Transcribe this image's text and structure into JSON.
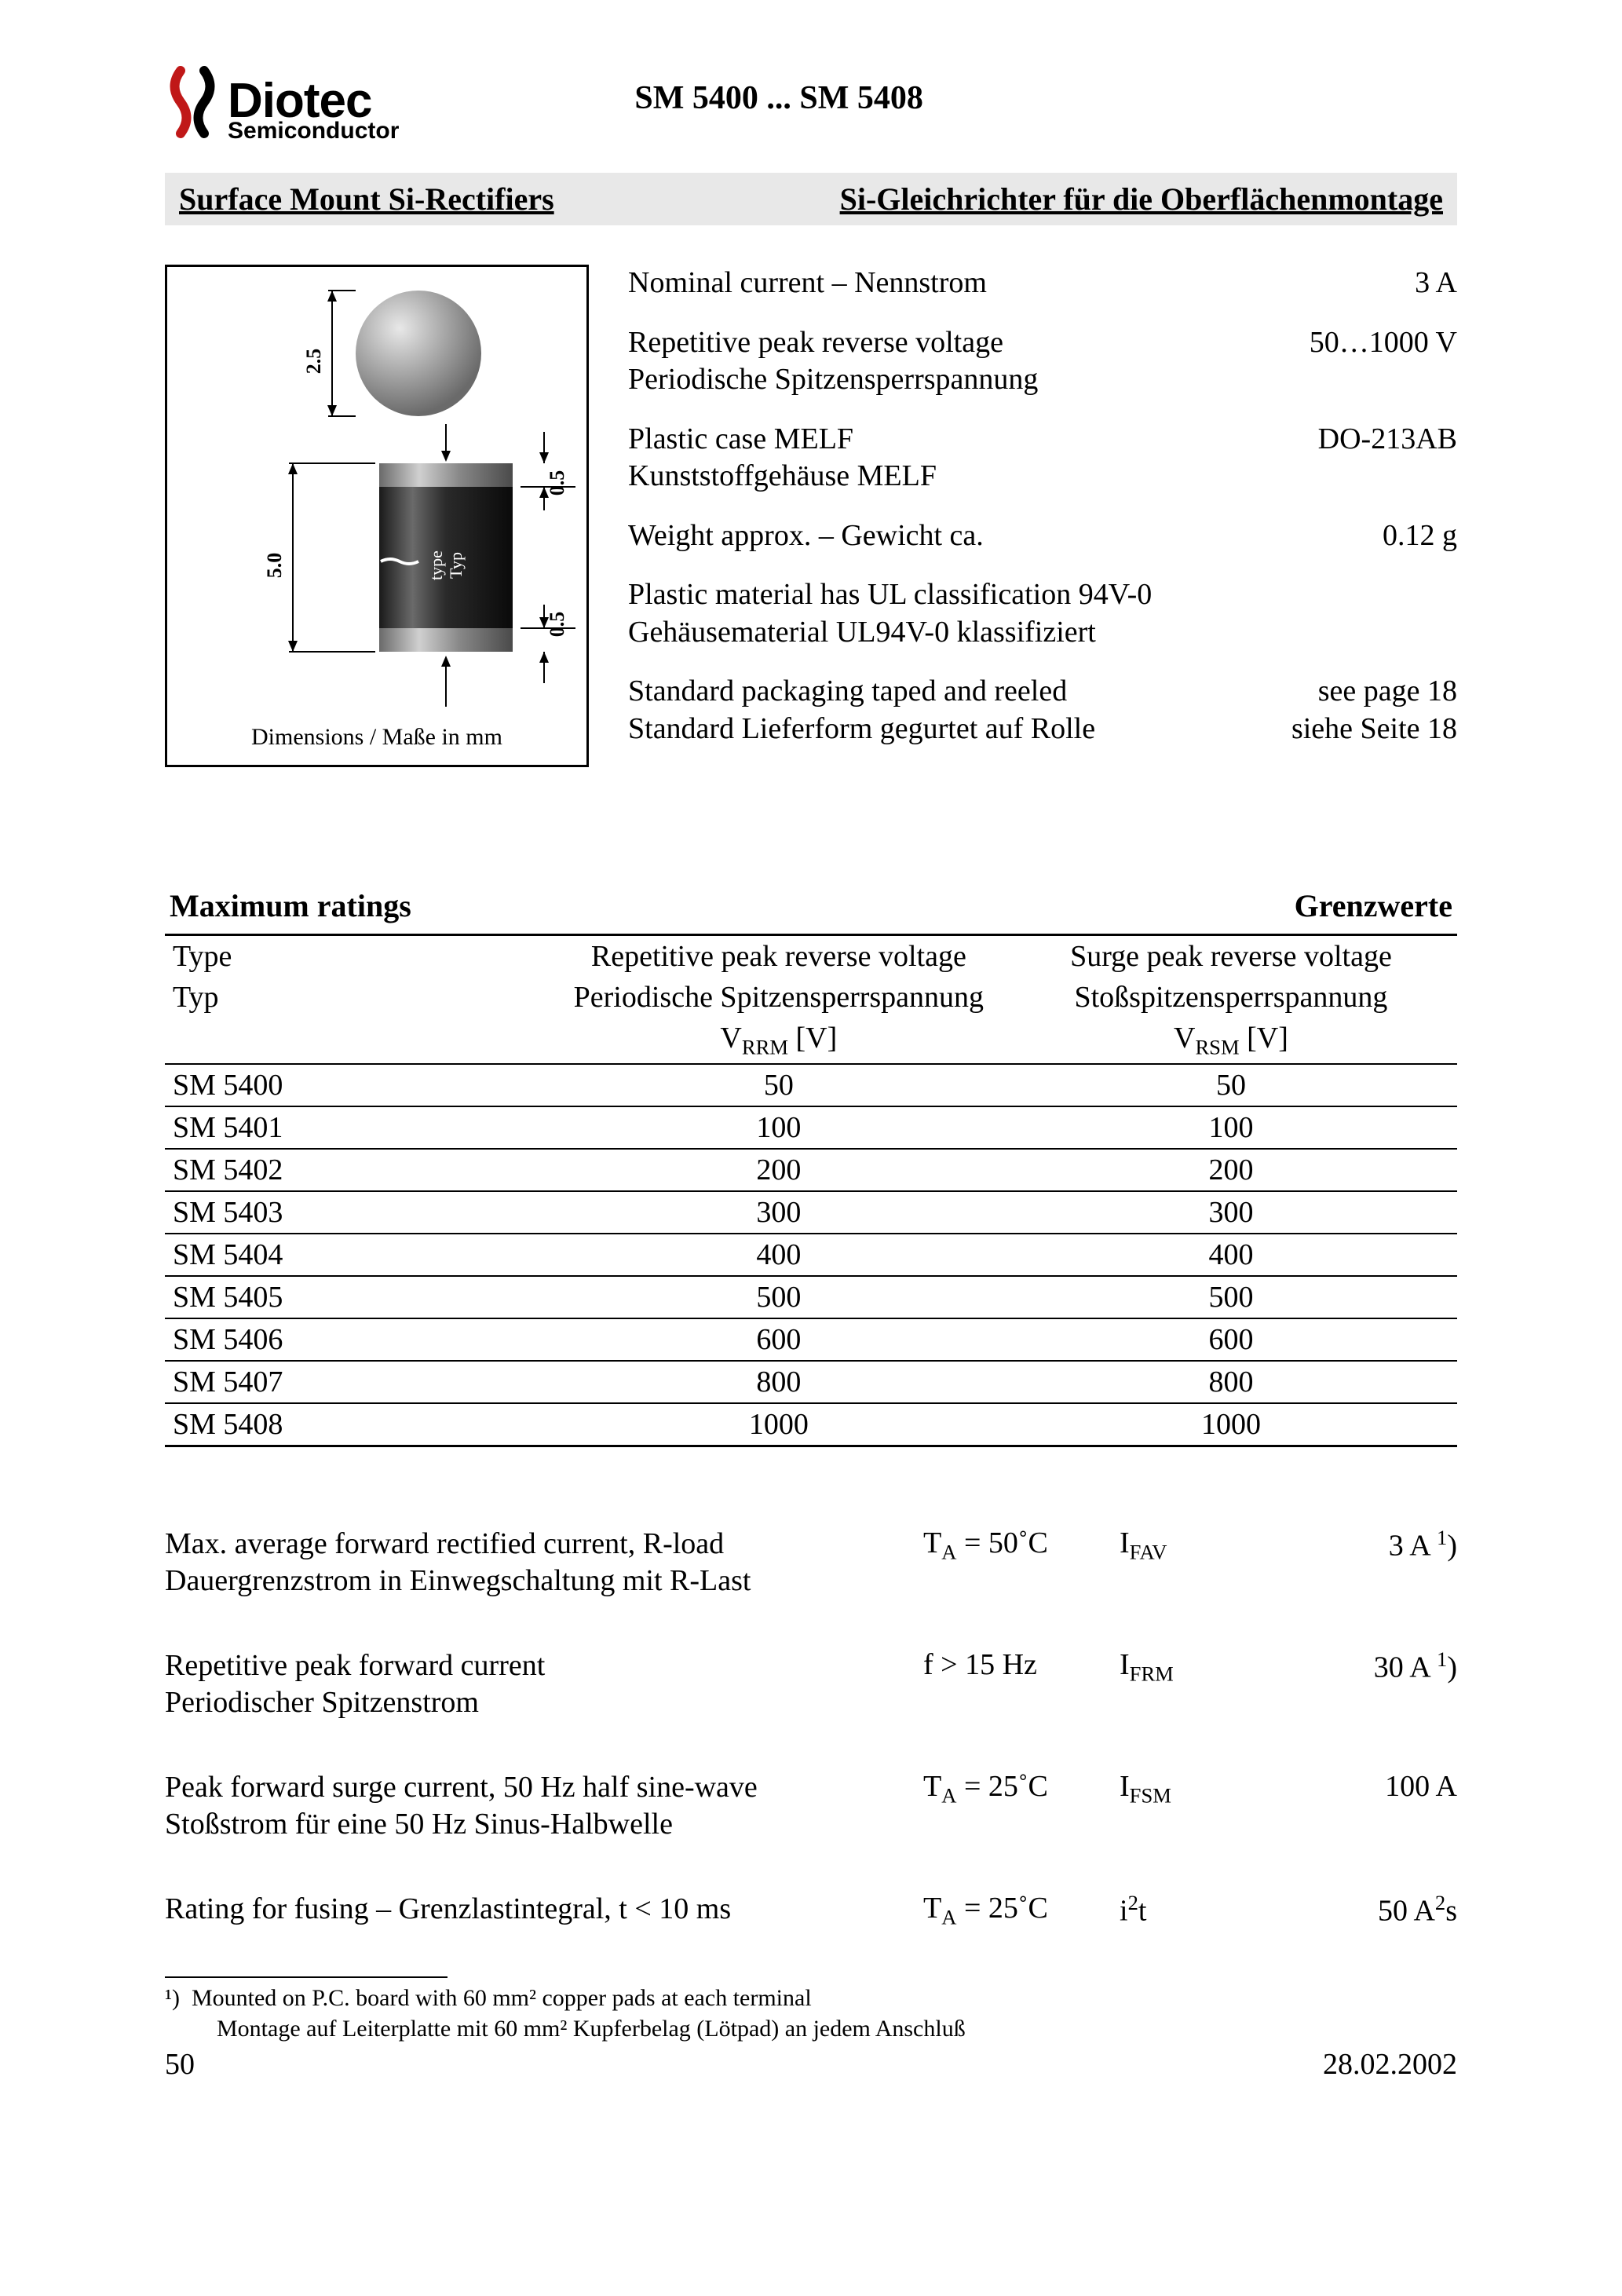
{
  "logo": {
    "main": "Diotec",
    "sub": "Semiconductor",
    "accent_color": "#c01818"
  },
  "part_range": "SM 5400 ... SM 5408",
  "title_en": "Surface Mount Si-Rectifiers",
  "title_de": "Si-Gleichrichter für die Oberflächenmontage",
  "diagram": {
    "caption": "Dimensions / Maße in mm",
    "body_length": "5.0",
    "body_diameter": "2.5",
    "cap_h1": "0.5",
    "cap_h2": "0.5",
    "marking": "type\nTyp"
  },
  "specs": [
    {
      "label_en": "Nominal current – Nennstrom",
      "label_de": "",
      "value": "3 A"
    },
    {
      "label_en": "Repetitive peak reverse voltage",
      "label_de": "Periodische Spitzensperrspannung",
      "value": "50…1000 V"
    },
    {
      "label_en": "Plastic case MELF",
      "label_de": "Kunststoffgehäuse MELF",
      "value": "DO-213AB"
    },
    {
      "label_en": "Weight approx. – Gewicht ca.",
      "label_de": "",
      "value": "0.12 g"
    },
    {
      "label_en": "Plastic material has UL classification 94V-0",
      "label_de": "Gehäusematerial UL94V-0 klassifiziert",
      "value": ""
    },
    {
      "label_en": "Standard packaging taped and reeled",
      "label_de": "Standard Lieferform gegurtet auf Rolle",
      "value": "see page 18\nsiehe Seite 18"
    }
  ],
  "ratings_title_en": "Maximum ratings",
  "ratings_title_de": "Grenzwerte",
  "ratings_header": {
    "col1_en": "Type",
    "col1_de": "Typ",
    "col2_en": "Repetitive peak reverse voltage",
    "col2_de": "Periodische Spitzensperrspannung",
    "col2_sym": "V_RRM [V]",
    "col3_en": "Surge peak reverse voltage",
    "col3_de": "Stoßspitzensperrspannung",
    "col3_sym": "V_RSM [V]"
  },
  "ratings_rows": [
    {
      "type": "SM 5400",
      "vrrm": "50",
      "vrsm": "50"
    },
    {
      "type": "SM 5401",
      "vrrm": "100",
      "vrsm": "100"
    },
    {
      "type": "SM 5402",
      "vrrm": "200",
      "vrsm": "200"
    },
    {
      "type": "SM 5403",
      "vrrm": "300",
      "vrsm": "300"
    },
    {
      "type": "SM 5404",
      "vrrm": "400",
      "vrsm": "400"
    },
    {
      "type": "SM 5405",
      "vrrm": "500",
      "vrsm": "500"
    },
    {
      "type": "SM 5406",
      "vrrm": "600",
      "vrsm": "600"
    },
    {
      "type": "SM 5407",
      "vrrm": "800",
      "vrsm": "800"
    },
    {
      "type": "SM 5408",
      "vrrm": "1000",
      "vrsm": "1000"
    }
  ],
  "characteristics": [
    {
      "desc_en": "Max. average forward rectified current, R-load",
      "desc_de": "Dauergrenzstrom in Einwegschaltung mit R-Last",
      "cond": "T_A = 50°C",
      "sym": "I_FAV",
      "val": "3 A ¹)"
    },
    {
      "desc_en": "Repetitive peak forward current",
      "desc_de": "Periodischer Spitzenstrom",
      "cond": "f > 15 Hz",
      "sym": "I_FRM",
      "val": "30 A ¹)"
    },
    {
      "desc_en": "Peak forward surge current, 50 Hz half sine-wave",
      "desc_de": "Stoßstrom für eine 50 Hz Sinus-Halbwelle",
      "cond": "T_A = 25°C",
      "sym": "I_FSM",
      "val": "100 A"
    },
    {
      "desc_en": "Rating for fusing – Grenzlastintegral, t < 10 ms",
      "desc_de": "",
      "cond": "T_A = 25°C",
      "sym": "i²t",
      "val": "50 A²s"
    }
  ],
  "footnote": {
    "marker": "¹)",
    "en": "Mounted on P.C. board with 60 mm² copper pads at each terminal",
    "de": "Montage auf Leiterplatte mit 60 mm² Kupferbelag (Lötpad) an jedem Anschluß"
  },
  "footer": {
    "page_number": "50",
    "date": "28.02.2002"
  },
  "colors": {
    "background": "#ffffff",
    "title_bar_bg": "#e8e8e8",
    "rule": "#000000",
    "melf_body": "#3a3a3a",
    "melf_cap": "#8a8a8a",
    "ball": "#9a9a9a"
  }
}
